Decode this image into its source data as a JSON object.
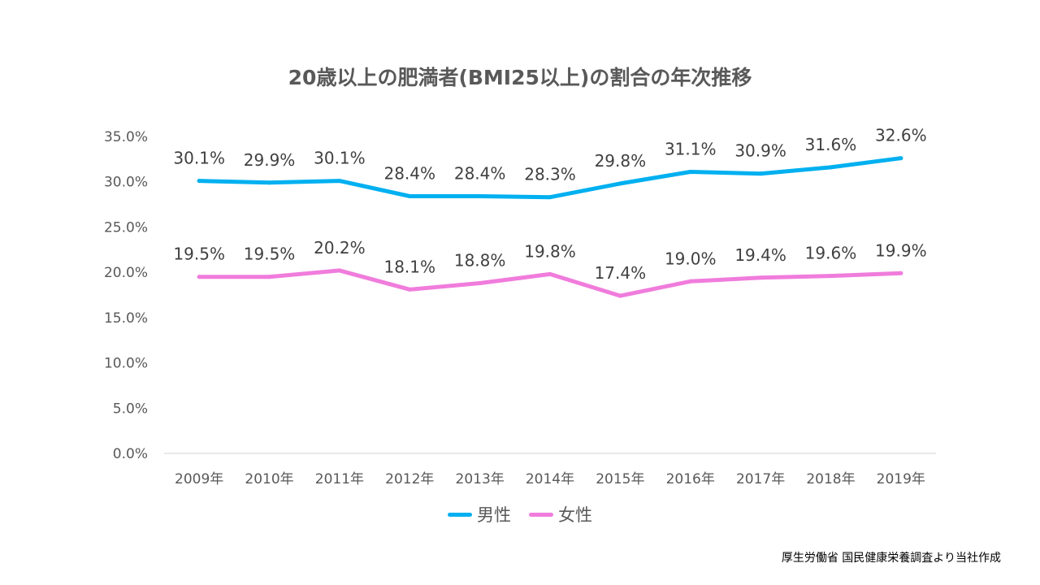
{
  "chart_data": {
    "type": "line",
    "title": "20歳以上の肥満者(BMI25以上)の割合の年次推移",
    "categories": [
      "2009年",
      "2010年",
      "2011年",
      "2012年",
      "2013年",
      "2014年",
      "2015年",
      "2016年",
      "2017年",
      "2018年",
      "2019年"
    ],
    "series": [
      {
        "name": "男性",
        "color": "#00B0F0",
        "values": [
          30.1,
          29.9,
          30.1,
          28.4,
          28.4,
          28.3,
          29.8,
          31.1,
          30.9,
          31.6,
          32.6
        ],
        "labels": [
          "30.1%",
          "29.9%",
          "30.1%",
          "28.4%",
          "28.4%",
          "28.3%",
          "29.8%",
          "31.1%",
          "30.9%",
          "31.6%",
          "32.6%"
        ]
      },
      {
        "name": "女性",
        "color": "#F07CDC",
        "values": [
          19.5,
          19.5,
          20.2,
          18.1,
          18.8,
          19.8,
          17.4,
          19.0,
          19.4,
          19.6,
          19.9
        ],
        "labels": [
          "19.5%",
          "19.5%",
          "20.2%",
          "18.1%",
          "18.8%",
          "19.8%",
          "17.4%",
          "19.0%",
          "19.4%",
          "19.6%",
          "19.9%"
        ]
      }
    ],
    "ylim": [
      0,
      35
    ],
    "yticks": [
      0,
      5,
      10,
      15,
      20,
      25,
      30,
      35
    ],
    "ytick_labels": [
      "0.0%",
      "5.0%",
      "10.0%",
      "15.0%",
      "20.0%",
      "25.0%",
      "30.0%",
      "35.0%"
    ],
    "xlabel": "",
    "ylabel": "",
    "grid": false,
    "legend": "bottom-center"
  },
  "source_note": "厚生労働省 国民健康栄養調査より当社作成"
}
